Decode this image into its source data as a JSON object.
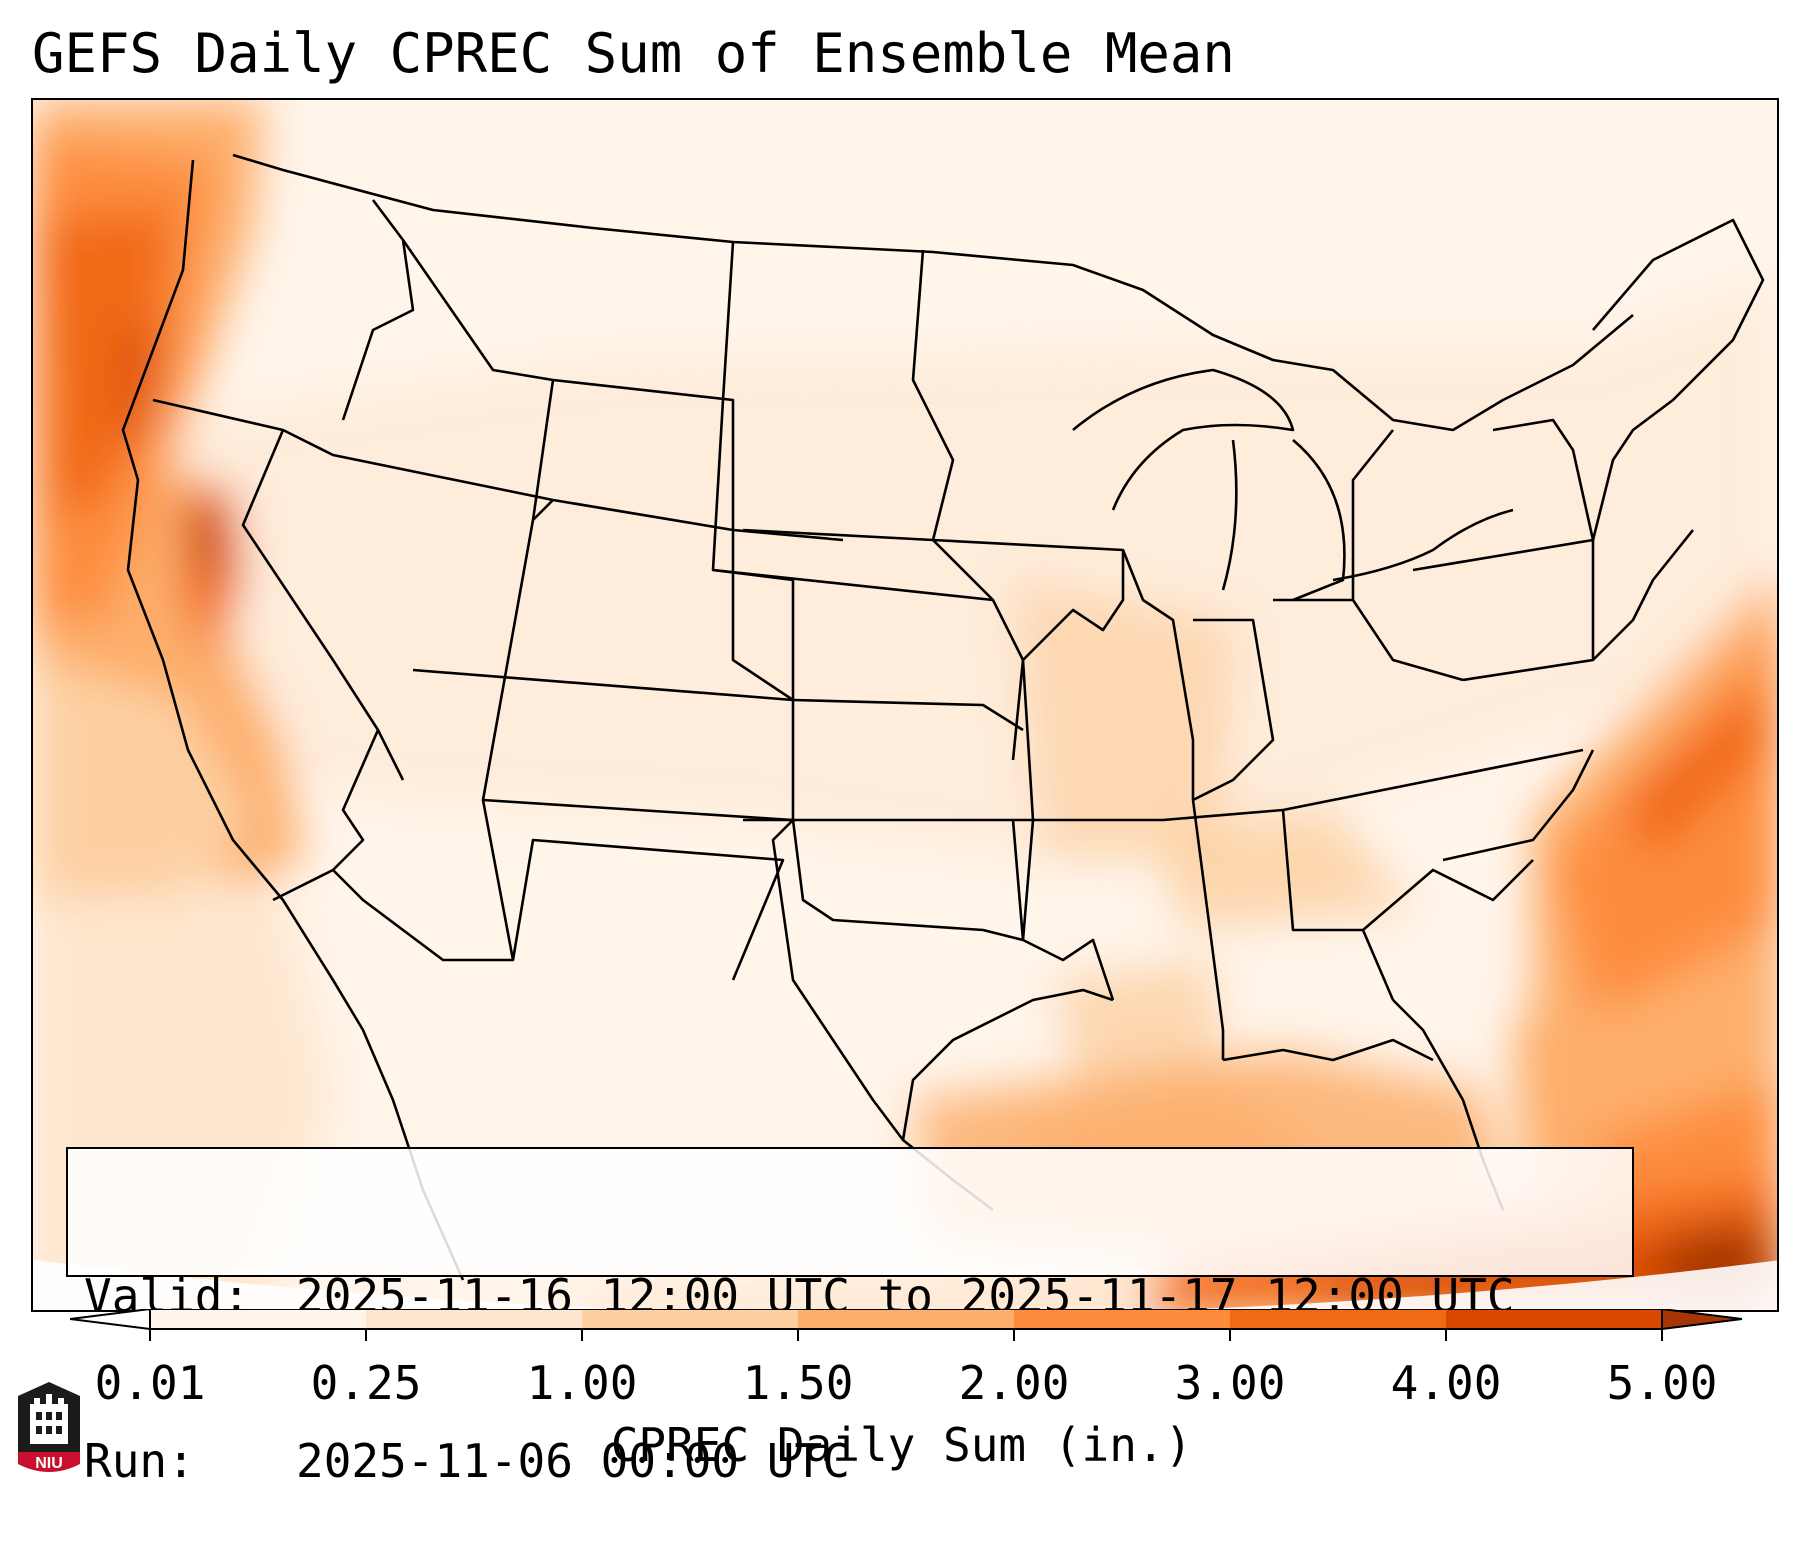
{
  "title": "GEFS Daily CPREC Sum of Ensemble Mean",
  "info": {
    "valid_label": "Valid:",
    "valid_text": "2025-11-16 12:00 UTC to 2025-11-17 12:00 UTC",
    "run_label": "Run:",
    "run_text": "2025-11-06 00:00 UTC"
  },
  "colorbar": {
    "label": "CPREC Daily Sum (in.)",
    "ticks": [
      "0.01",
      "0.25",
      "1.00",
      "1.50",
      "2.00",
      "3.00",
      "4.00",
      "5.00"
    ],
    "colors": [
      "#fff5eb",
      "#fee6ce",
      "#fdd0a2",
      "#fdae6b",
      "#fd8d3c",
      "#f16913",
      "#d94801",
      "#a63603"
    ],
    "extend": "both"
  },
  "map": {
    "region": "Contiguous United States",
    "colormap": "Oranges",
    "heaviest_precipitation_areas": [
      "Pacific Northwest coast",
      "northern California coast",
      "Atlantic off the Southeast coast",
      "Gulf of Mexico",
      "near Cuba and the Bahamas"
    ]
  },
  "logo": {
    "text": "NIU"
  }
}
